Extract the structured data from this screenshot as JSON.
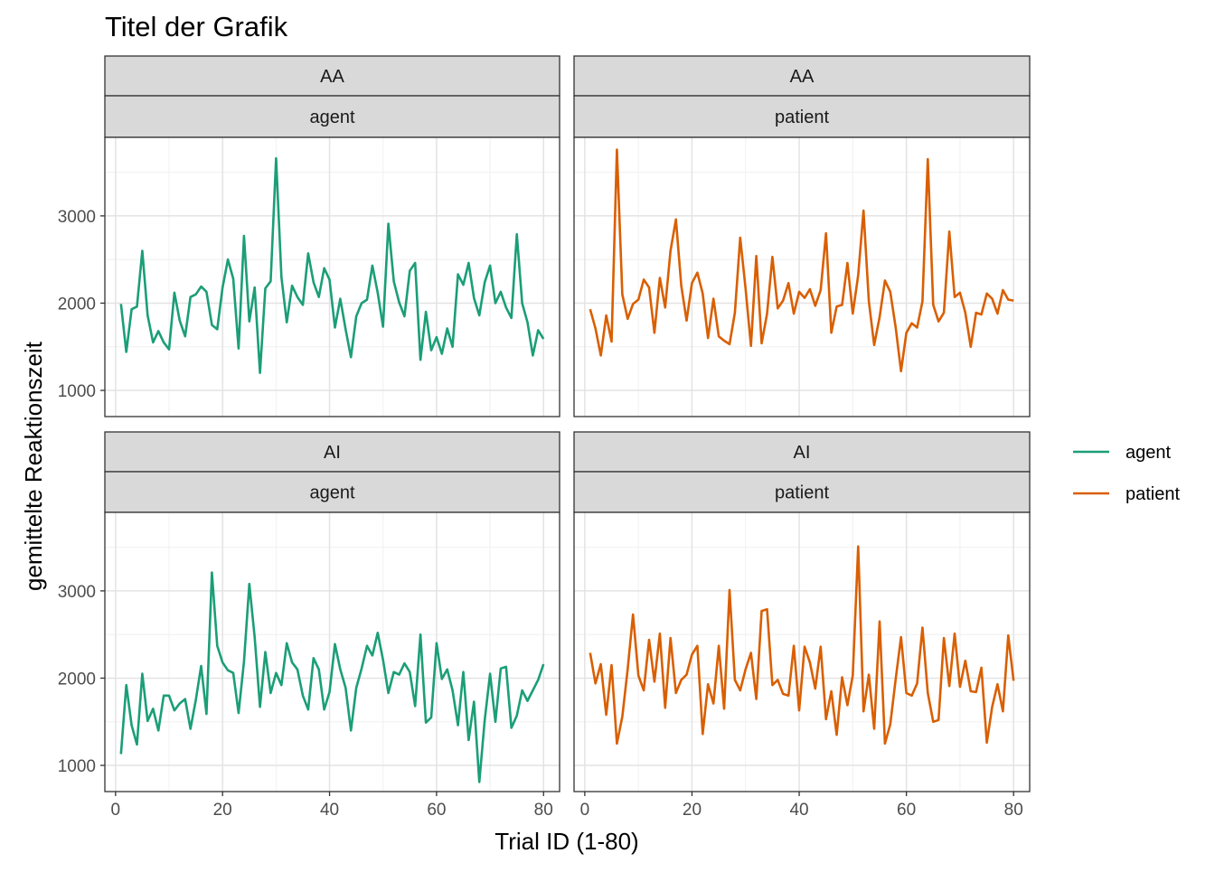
{
  "chart_data": {
    "type": "line",
    "title": "Titel der Grafik",
    "xlabel": "Trial ID (1-80)",
    "ylabel": "gemittelte Reaktionszeit",
    "xlim": [
      -2,
      83
    ],
    "ylim": [
      700,
      3900
    ],
    "x_ticks": [
      0,
      20,
      40,
      60,
      80
    ],
    "y_ticks": [
      1000,
      2000,
      3000
    ],
    "grid": true,
    "legend": {
      "position": "right",
      "entries": [
        {
          "name": "agent",
          "color": "#1b9e77"
        },
        {
          "name": "patient",
          "color": "#d95f02"
        }
      ]
    },
    "facets": [
      {
        "row": "AA",
        "col": "agent",
        "series": "agent",
        "color": "#1b9e77",
        "x_start": 1,
        "values": [
          1990,
          1440,
          1930,
          1960,
          2600,
          1860,
          1550,
          1680,
          1550,
          1470,
          2120,
          1800,
          1620,
          2070,
          2100,
          2190,
          2130,
          1750,
          1700,
          2180,
          2500,
          2280,
          1480,
          2770,
          1790,
          2180,
          1200,
          2170,
          2250,
          3660,
          2300,
          1780,
          2200,
          2070,
          1980,
          2570,
          2240,
          2070,
          2400,
          2270,
          1720,
          2050,
          1700,
          1380,
          1850,
          2000,
          2040,
          2430,
          2120,
          1730,
          2910,
          2250,
          2010,
          1850,
          2370,
          2460,
          1350,
          1900,
          1460,
          1610,
          1420,
          1710,
          1500,
          2330,
          2210,
          2460,
          2060,
          1860,
          2240,
          2430,
          2000,
          2130,
          1950,
          1830,
          2790,
          2000,
          1780,
          1400,
          1690,
          1590
        ]
      },
      {
        "row": "AA",
        "col": "patient",
        "series": "patient",
        "color": "#d95f02",
        "x_start": 1,
        "values": [
          1930,
          1710,
          1400,
          1860,
          1560,
          3760,
          2100,
          1820,
          1990,
          2040,
          2270,
          2180,
          1660,
          2290,
          1950,
          2600,
          2960,
          2200,
          1800,
          2230,
          2350,
          2110,
          1600,
          2050,
          1620,
          1570,
          1530,
          1890,
          2750,
          2170,
          1510,
          2540,
          1540,
          1880,
          2530,
          1940,
          2030,
          2230,
          1880,
          2130,
          2060,
          2160,
          1970,
          2150,
          2800,
          1660,
          1960,
          1980,
          2460,
          1880,
          2320,
          3060,
          2020,
          1520,
          1840,
          2260,
          2130,
          1720,
          1220,
          1660,
          1770,
          1720,
          2020,
          3650,
          1980,
          1790,
          1890,
          2820,
          2070,
          2120,
          1890,
          1500,
          1890,
          1870,
          2110,
          2050,
          1880,
          2150,
          2040,
          2030
        ]
      },
      {
        "row": "AI",
        "col": "agent",
        "series": "agent",
        "color": "#1b9e77",
        "x_start": 1,
        "values": [
          1130,
          1920,
          1460,
          1240,
          2050,
          1510,
          1650,
          1400,
          1800,
          1800,
          1630,
          1710,
          1760,
          1420,
          1750,
          2140,
          1590,
          3210,
          2370,
          2180,
          2090,
          2060,
          1600,
          2190,
          3080,
          2470,
          1670,
          2300,
          1830,
          2060,
          1920,
          2400,
          2180,
          2100,
          1800,
          1640,
          2230,
          2100,
          1640,
          1840,
          2390,
          2100,
          1890,
          1400,
          1890,
          2110,
          2370,
          2260,
          2520,
          2210,
          1830,
          2070,
          2040,
          2170,
          2070,
          1680,
          2500,
          1490,
          1550,
          2400,
          1990,
          2100,
          1860,
          1460,
          2070,
          1290,
          1730,
          810,
          1520,
          2050,
          1500,
          2110,
          2130,
          1430,
          1570,
          1860,
          1740,
          1860,
          1980,
          2160
        ]
      },
      {
        "row": "AI",
        "col": "patient",
        "series": "patient",
        "color": "#d95f02",
        "x_start": 1,
        "values": [
          2290,
          1940,
          2160,
          1580,
          2150,
          1250,
          1560,
          2100,
          2730,
          2030,
          1860,
          2440,
          1960,
          2510,
          1660,
          2460,
          1830,
          1980,
          2040,
          2270,
          2370,
          1360,
          1930,
          1710,
          2370,
          1650,
          3010,
          1980,
          1860,
          2100,
          2290,
          1760,
          2770,
          2790,
          1920,
          1980,
          1820,
          1800,
          2370,
          1630,
          2360,
          2180,
          1880,
          2360,
          1530,
          1850,
          1350,
          2010,
          1690,
          2030,
          3510,
          1620,
          2040,
          1420,
          2650,
          1250,
          1470,
          1990,
          2470,
          1830,
          1800,
          1940,
          2580,
          1830,
          1500,
          1520,
          2460,
          1910,
          2510,
          1900,
          2200,
          1850,
          1840,
          2120,
          1260,
          1670,
          1930,
          1620,
          2490,
          1970
        ]
      }
    ]
  }
}
